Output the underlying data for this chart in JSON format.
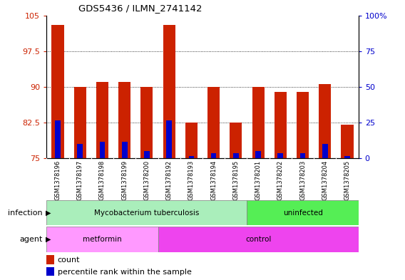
{
  "title": "GDS5436 / ILMN_2741142",
  "samples": [
    "GSM1378196",
    "GSM1378197",
    "GSM1378198",
    "GSM1378199",
    "GSM1378200",
    "GSM1378192",
    "GSM1378193",
    "GSM1378194",
    "GSM1378195",
    "GSM1378201",
    "GSM1378202",
    "GSM1378203",
    "GSM1378204",
    "GSM1378205"
  ],
  "counts": [
    103,
    90,
    91,
    91,
    90,
    103,
    82.5,
    90,
    82.5,
    90,
    89,
    89,
    90.5,
    82
  ],
  "percentile_base": 75,
  "percentile_vals": [
    83,
    78,
    78.5,
    78.5,
    76.5,
    83,
    75.5,
    76,
    76,
    76.5,
    76,
    76,
    78,
    75.5
  ],
  "ylim_left": [
    75,
    105
  ],
  "ylim_right": [
    0,
    100
  ],
  "yticks_left": [
    75,
    82.5,
    90,
    97.5,
    105
  ],
  "yticks_right": [
    0,
    25,
    50,
    75,
    100
  ],
  "bar_color": "#cc2200",
  "percentile_color": "#0000cc",
  "bar_width": 0.55,
  "infection_color_tb": "#aaeebb",
  "infection_color_uninf": "#55ee55",
  "agent_color_metformin": "#ff99ff",
  "agent_color_control": "#ee44ee",
  "xtick_bg": "#d8d8d8",
  "grid_color": "#000000"
}
